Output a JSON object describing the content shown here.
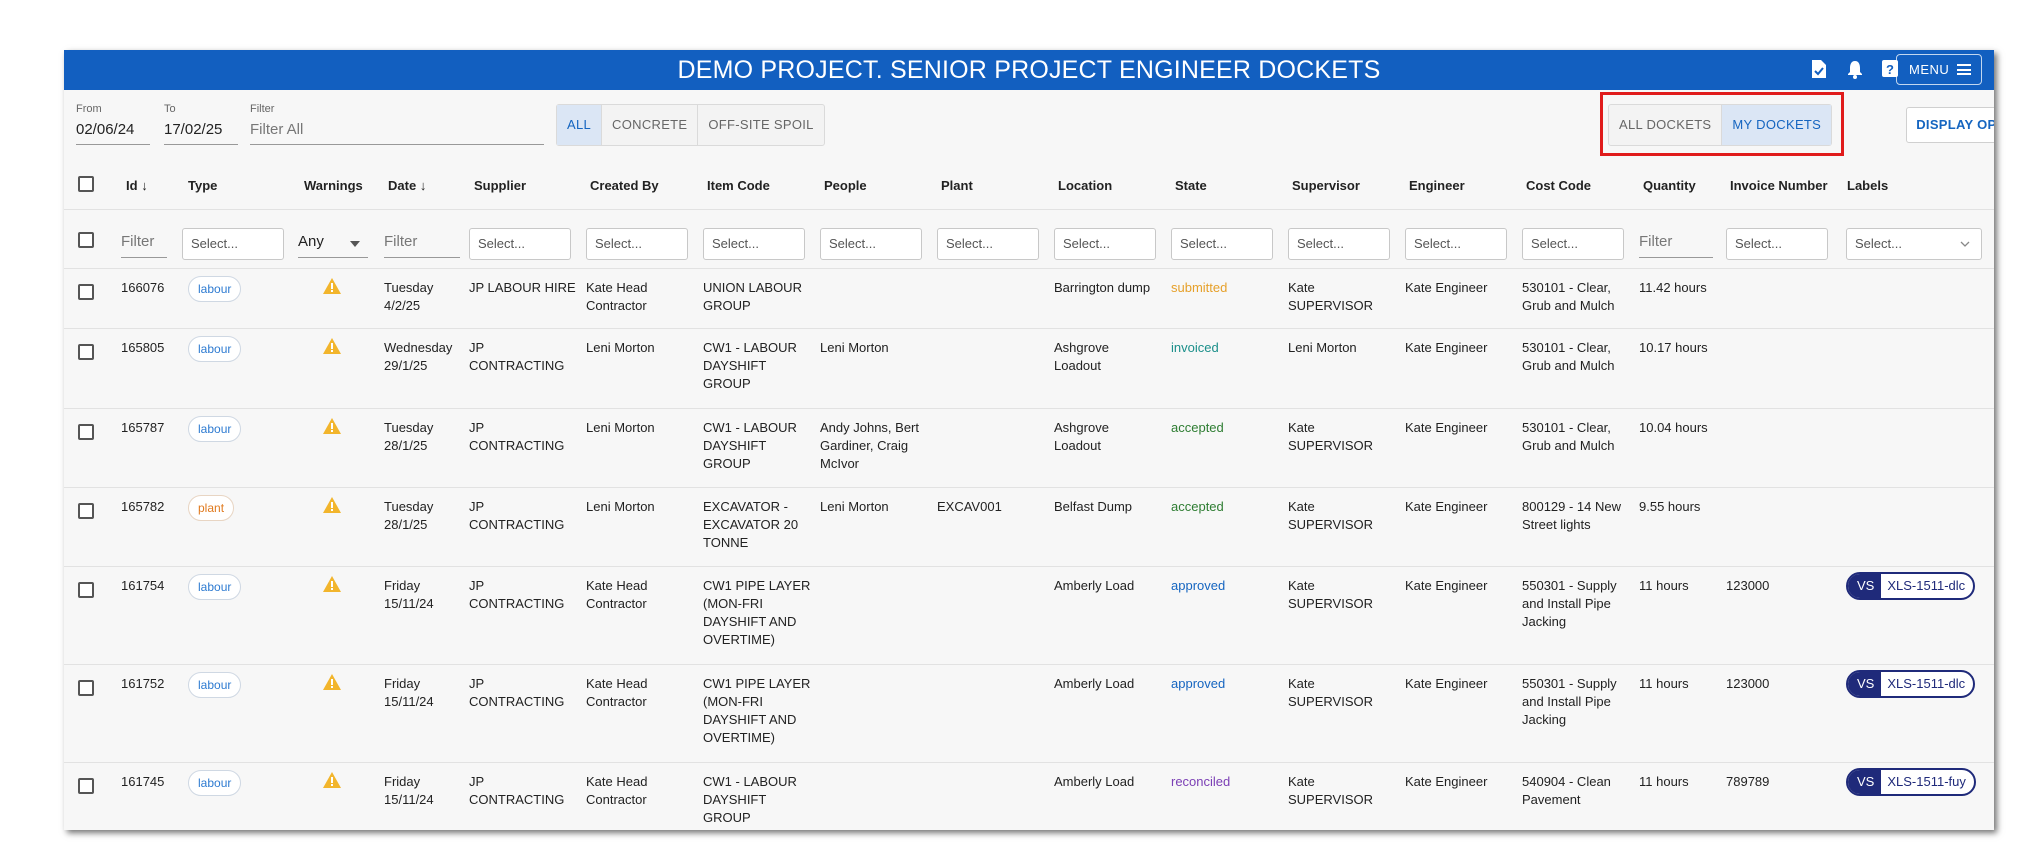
{
  "app": {
    "title": "DEMO PROJECT. SENIOR PROJECT ENGINEER DOCKETS",
    "menu_label": "MENU",
    "accent": "#125fc0"
  },
  "toolbar": {
    "from_label": "From",
    "from_value": "02/06/24",
    "to_label": "To",
    "to_value": "17/02/25",
    "filter_label": "Filter",
    "filter_placeholder": "Filter All",
    "type_tabs": [
      "ALL",
      "CONCRETE",
      "OFF-SITE SPOIL"
    ],
    "active_type_tab": "ALL",
    "docket_tabs": [
      "ALL DOCKETS",
      "MY DOCKETS"
    ],
    "active_docket_tab": "MY DOCKETS",
    "display_options_label": "DISPLAY OPTIONS"
  },
  "table": {
    "columns": [
      "Id",
      "Type",
      "Warnings",
      "Date",
      "Supplier",
      "Created By",
      "Item Code",
      "People",
      "Plant",
      "Location",
      "State",
      "Supervisor",
      "Engineer",
      "Cost Code",
      "Quantity",
      "Invoice Number",
      "Labels"
    ],
    "sort_indicator": "↓",
    "filters": {
      "text_placeholder": "Filter",
      "select_placeholder": "Select...",
      "warnings_value": "Any"
    },
    "rows": [
      {
        "id": "166076",
        "type": "labour",
        "date": [
          "Tuesday",
          "4/2/25"
        ],
        "supplier": [
          "JP LABOUR HIRE"
        ],
        "created_by": [
          "Kate Head",
          "Contractor"
        ],
        "item_code": [
          "UNION LABOUR",
          "GROUP"
        ],
        "people": [],
        "plant": "",
        "location": [
          "Barrington dump"
        ],
        "state": "submitted",
        "supervisor": [
          "Kate",
          "SUPERVISOR"
        ],
        "engineer": "Kate Engineer",
        "cost_code": [
          "530101 - Clear,",
          "Grub and Mulch"
        ],
        "quantity": "11.42 hours",
        "invoice": "",
        "label": null
      },
      {
        "id": "165805",
        "type": "labour",
        "date": [
          "Wednesday",
          "29/1/25"
        ],
        "supplier": [
          "JP",
          "CONTRACTING"
        ],
        "created_by": [
          "Leni Morton"
        ],
        "item_code": [
          "CW1 - LABOUR",
          "DAYSHIFT",
          "GROUP"
        ],
        "people": [
          "Leni Morton"
        ],
        "plant": "",
        "location": [
          "Ashgrove",
          "Loadout"
        ],
        "state": "invoiced",
        "supervisor": [
          "Leni Morton"
        ],
        "engineer": "Kate Engineer",
        "cost_code": [
          "530101 - Clear,",
          "Grub and Mulch"
        ],
        "quantity": "10.17 hours",
        "invoice": "",
        "label": null
      },
      {
        "id": "165787",
        "type": "labour",
        "date": [
          "Tuesday",
          "28/1/25"
        ],
        "supplier": [
          "JP",
          "CONTRACTING"
        ],
        "created_by": [
          "Leni Morton"
        ],
        "item_code": [
          "CW1 - LABOUR",
          "DAYSHIFT",
          "GROUP"
        ],
        "people": [
          "Andy Johns, Bert",
          "Gardiner, Craig",
          "McIvor"
        ],
        "plant": "",
        "location": [
          "Ashgrove",
          "Loadout"
        ],
        "state": "accepted",
        "supervisor": [
          "Kate",
          "SUPERVISOR"
        ],
        "engineer": "Kate Engineer",
        "cost_code": [
          "530101 - Clear,",
          "Grub and Mulch"
        ],
        "quantity": "10.04 hours",
        "invoice": "",
        "label": null
      },
      {
        "id": "165782",
        "type": "plant",
        "date": [
          "Tuesday",
          "28/1/25"
        ],
        "supplier": [
          "JP",
          "CONTRACTING"
        ],
        "created_by": [
          "Leni Morton"
        ],
        "item_code": [
          "EXCAVATOR -",
          "EXCAVATOR 20",
          "TONNE"
        ],
        "people": [
          "Leni Morton"
        ],
        "plant": "EXCAV001",
        "location": [
          "Belfast Dump"
        ],
        "state": "accepted",
        "supervisor": [
          "Kate",
          "SUPERVISOR"
        ],
        "engineer": "Kate Engineer",
        "cost_code": [
          "800129 - 14 New",
          "Street lights"
        ],
        "quantity": "9.55 hours",
        "invoice": "",
        "label": null
      },
      {
        "id": "161754",
        "type": "labour",
        "date": [
          "Friday",
          "15/11/24"
        ],
        "supplier": [
          "JP",
          "CONTRACTING"
        ],
        "created_by": [
          "Kate Head",
          "Contractor"
        ],
        "item_code": [
          "CW1 PIPE LAYER",
          "(MON-FRI",
          "DAYSHIFT AND",
          "OVERTIME)"
        ],
        "people": [],
        "plant": "",
        "location": [
          "Amberly Load"
        ],
        "state": "approved",
        "supervisor": [
          "Kate",
          "SUPERVISOR"
        ],
        "engineer": "Kate Engineer",
        "cost_code": [
          "550301 - Supply",
          "and Install Pipe",
          "Jacking"
        ],
        "quantity": "11 hours",
        "invoice": "123000",
        "label": {
          "prefix": "VS",
          "value": "XLS-1511-dlc"
        }
      },
      {
        "id": "161752",
        "type": "labour",
        "date": [
          "Friday",
          "15/11/24"
        ],
        "supplier": [
          "JP",
          "CONTRACTING"
        ],
        "created_by": [
          "Kate Head",
          "Contractor"
        ],
        "item_code": [
          "CW1 PIPE LAYER",
          "(MON-FRI",
          "DAYSHIFT AND",
          "OVERTIME)"
        ],
        "people": [],
        "plant": "",
        "location": [
          "Amberly Load"
        ],
        "state": "approved",
        "supervisor": [
          "Kate",
          "SUPERVISOR"
        ],
        "engineer": "Kate Engineer",
        "cost_code": [
          "550301 - Supply",
          "and Install Pipe",
          "Jacking"
        ],
        "quantity": "11 hours",
        "invoice": "123000",
        "label": {
          "prefix": "VS",
          "value": "XLS-1511-dlc"
        }
      },
      {
        "id": "161745",
        "type": "labour",
        "date": [
          "Friday",
          "15/11/24"
        ],
        "supplier": [
          "JP",
          "CONTRACTING"
        ],
        "created_by": [
          "Kate Head",
          "Contractor"
        ],
        "item_code": [
          "CW1 - LABOUR",
          "DAYSHIFT",
          "GROUP"
        ],
        "people": [],
        "plant": "",
        "location": [
          "Amberly Load"
        ],
        "state": "reconciled",
        "supervisor": [
          "Kate",
          "SUPERVISOR"
        ],
        "engineer": "Kate Engineer",
        "cost_code": [
          "540904 - Clean",
          "Pavement"
        ],
        "quantity": "11 hours",
        "invoice": "789789",
        "label": {
          "prefix": "VS",
          "value": "XLS-1511-fuy"
        }
      }
    ]
  }
}
